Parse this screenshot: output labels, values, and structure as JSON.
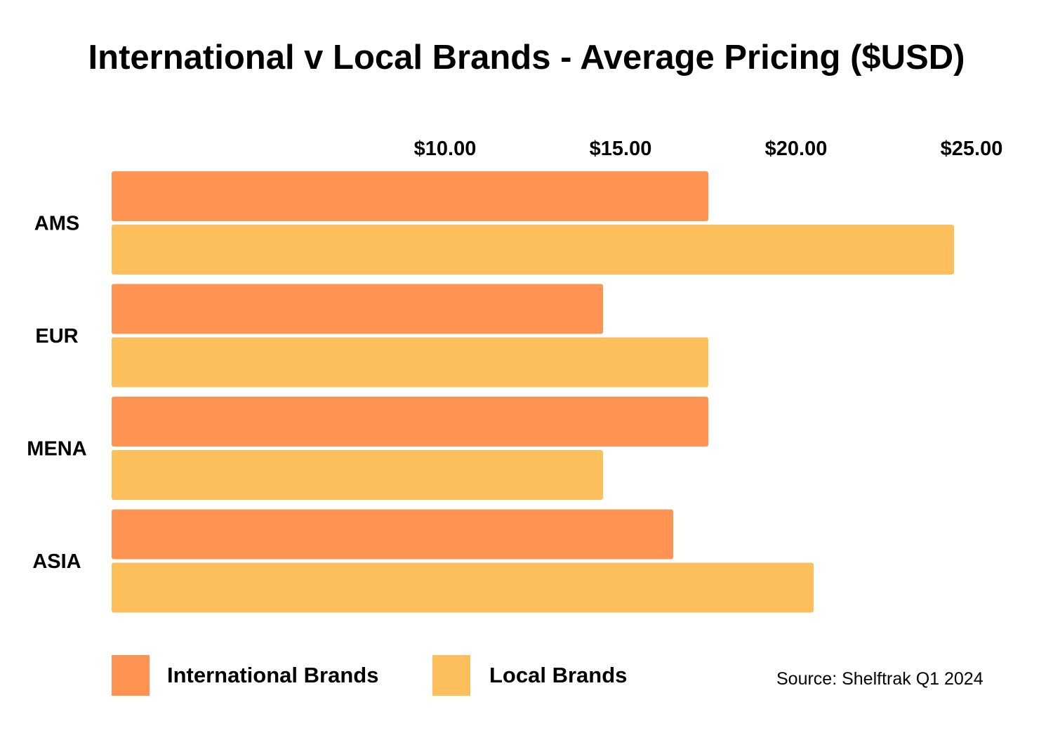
{
  "chart_data": {
    "type": "bar",
    "orientation": "horizontal",
    "title": "International v Local Brands - Average Pricing ($USD)",
    "categories": [
      "AMS",
      "EUR",
      "MENA",
      "ASIA"
    ],
    "series": [
      {
        "name": "International Brands",
        "color": "#FF9452",
        "values": [
          17.5,
          14.5,
          17.5,
          16.5
        ]
      },
      {
        "name": "Local Brands",
        "color": "#FDBE5C",
        "values": [
          24.5,
          17.5,
          14.5,
          20.5
        ]
      }
    ],
    "x_ticks": [
      {
        "value": 10,
        "label": "$10.00"
      },
      {
        "value": 15,
        "label": "$15.00"
      },
      {
        "value": 20,
        "label": "$20.00"
      },
      {
        "value": 25,
        "label": "$25.00"
      }
    ],
    "xlim": [
      0.5,
      25.5
    ],
    "grid": false,
    "legend_position": "bottom-left",
    "source": "Source: Shelftrak Q1 2024"
  }
}
